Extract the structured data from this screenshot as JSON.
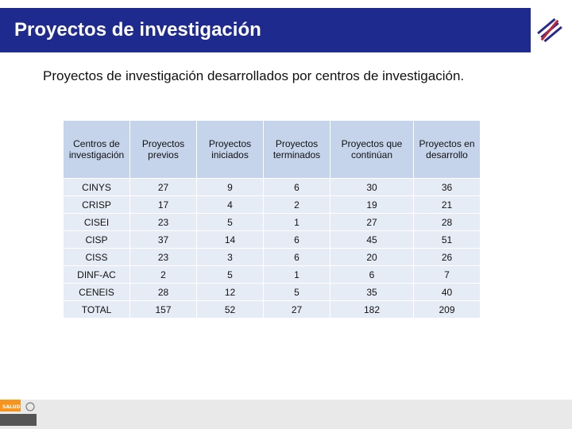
{
  "header": {
    "title": "Proyectos de investigación"
  },
  "subtitle": "Proyectos de investigación desarrollados por centros de investigación.",
  "table": {
    "columns": [
      "Centros de investigación",
      "Proyectos previos",
      "Proyectos iniciados",
      "Proyectos terminados",
      "Proyectos que continúan",
      "Proyectos en desarrollo"
    ],
    "rows": [
      [
        "CINYS",
        "27",
        "9",
        "6",
        "30",
        "36"
      ],
      [
        "CRISP",
        "17",
        "4",
        "2",
        "19",
        "21"
      ],
      [
        "CISEI",
        "23",
        "5",
        "1",
        "27",
        "28"
      ],
      [
        "CISP",
        "37",
        "14",
        "6",
        "45",
        "51"
      ],
      [
        "CISS",
        "23",
        "3",
        "6",
        "20",
        "26"
      ],
      [
        "DINF-AC",
        "2",
        "5",
        "1",
        "6",
        "7"
      ],
      [
        "CENEIS",
        "28",
        "12",
        "5",
        "35",
        "40"
      ],
      [
        "TOTAL",
        "157",
        "52",
        "27",
        "182",
        "209"
      ]
    ]
  },
  "footer": {
    "logo_label": "SALUD"
  },
  "colors": {
    "title_bar": "#1f2a8f",
    "header_cell": "#c5d4ea",
    "body_cell": "#e6ecf5",
    "salud_orange": "#f7941d"
  }
}
